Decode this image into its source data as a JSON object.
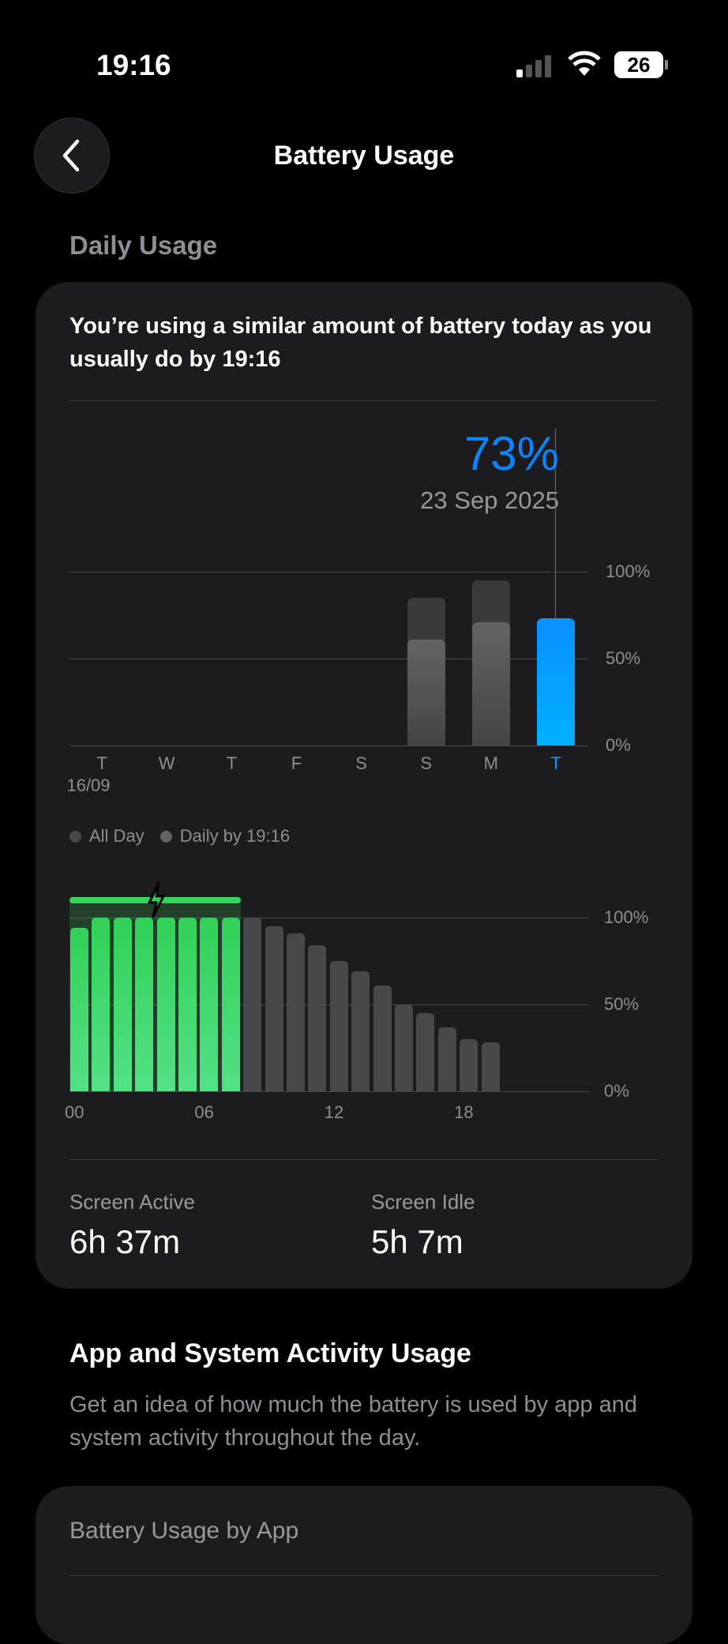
{
  "status_bar": {
    "time": "19:16",
    "battery_level": "26"
  },
  "nav": {
    "title": "Battery Usage",
    "back_icon": "chevron-left-icon"
  },
  "daily_usage": {
    "section_title": "Daily Usage",
    "headline": "You’re using a similar amount of battery today as you usually do by 19:16",
    "selected_value": "73%",
    "selected_date": "23 Sep 2025",
    "legend": [
      {
        "label": "All Day",
        "color": "#3a3a3c"
      },
      {
        "label": "Daily by 19:16",
        "color": "#636366"
      }
    ],
    "screen_active_label": "Screen Active",
    "screen_active_value": "6h 37m",
    "screen_idle_label": "Screen Idle",
    "screen_idle_value": "5h 7m"
  },
  "chart_data": [
    {
      "type": "bar",
      "categories": [
        "T",
        "W",
        "T",
        "F",
        "S",
        "S",
        "M",
        "T"
      ],
      "first_date_label": "16/09",
      "series": [
        {
          "name": "All Day",
          "values": [
            null,
            null,
            null,
            null,
            null,
            85,
            95,
            73
          ]
        },
        {
          "name": "Daily by 19:16",
          "values": [
            null,
            null,
            null,
            null,
            null,
            61,
            71,
            73
          ]
        }
      ],
      "selected_index": 7,
      "yticks": [
        "100%",
        "50%",
        "0%"
      ],
      "ylim": [
        0,
        100
      ],
      "colors": {
        "all_day": "#3a3a3c",
        "daily": "#5a5a5e",
        "selected": "#0a9aff"
      }
    },
    {
      "type": "bar",
      "xticks": [
        "00",
        "06",
        "12",
        "18"
      ],
      "yticks": [
        "100%",
        "50%",
        "0%"
      ],
      "ylim": [
        0,
        100
      ],
      "hours": [
        0,
        1,
        2,
        3,
        4,
        5,
        6,
        7,
        8,
        9,
        10,
        11,
        12,
        13,
        14,
        15,
        16,
        17,
        18,
        19
      ],
      "values": [
        94,
        100,
        100,
        100,
        100,
        100,
        100,
        100,
        100,
        95,
        91,
        84,
        75,
        69,
        61,
        50,
        45,
        37,
        30,
        28
      ],
      "charging_hours": [
        0,
        7
      ],
      "colors": {
        "charging": "#34d35b",
        "discharging": "#48484a"
      }
    }
  ],
  "activity": {
    "title": "App and System Activity Usage",
    "description": "Get an idea of how much the battery is used by app and system activity throughout the day.",
    "card_title": "Battery Usage by App"
  }
}
